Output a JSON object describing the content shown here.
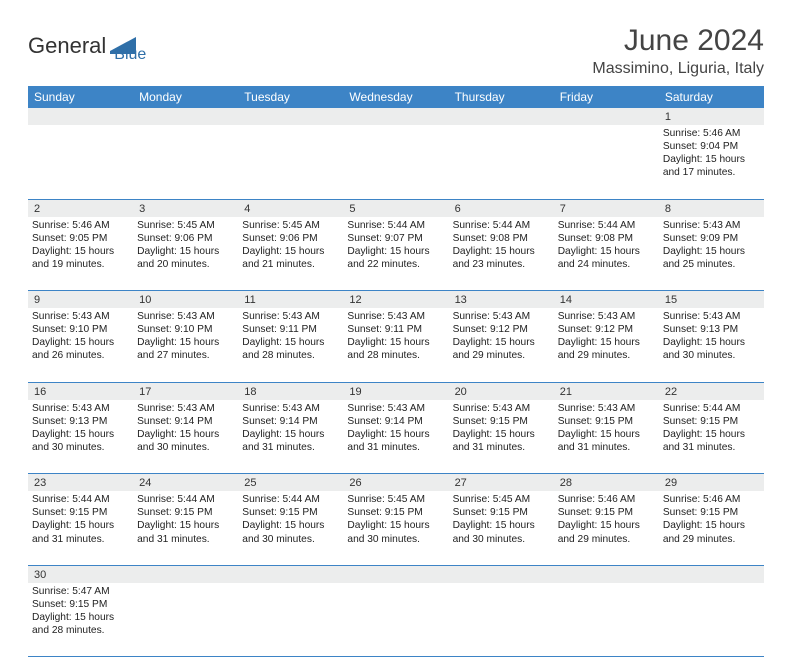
{
  "brand": {
    "part1": "General",
    "part2": "Blue"
  },
  "header": {
    "title": "June 2024",
    "location": "Massimino, Liguria, Italy"
  },
  "colors": {
    "header_bg": "#3d84c6",
    "header_text": "#ffffff",
    "daynum_bg": "#eceded",
    "border": "#3d84c6",
    "brand_blue": "#2f6fa8"
  },
  "weekdays": [
    "Sunday",
    "Monday",
    "Tuesday",
    "Wednesday",
    "Thursday",
    "Friday",
    "Saturday"
  ],
  "weeks": [
    [
      null,
      null,
      null,
      null,
      null,
      null,
      {
        "d": "1",
        "sr": "5:46 AM",
        "ss": "9:04 PM",
        "dl": "15 hours and 17 minutes."
      }
    ],
    [
      {
        "d": "2",
        "sr": "5:46 AM",
        "ss": "9:05 PM",
        "dl": "15 hours and 19 minutes."
      },
      {
        "d": "3",
        "sr": "5:45 AM",
        "ss": "9:06 PM",
        "dl": "15 hours and 20 minutes."
      },
      {
        "d": "4",
        "sr": "5:45 AM",
        "ss": "9:06 PM",
        "dl": "15 hours and 21 minutes."
      },
      {
        "d": "5",
        "sr": "5:44 AM",
        "ss": "9:07 PM",
        "dl": "15 hours and 22 minutes."
      },
      {
        "d": "6",
        "sr": "5:44 AM",
        "ss": "9:08 PM",
        "dl": "15 hours and 23 minutes."
      },
      {
        "d": "7",
        "sr": "5:44 AM",
        "ss": "9:08 PM",
        "dl": "15 hours and 24 minutes."
      },
      {
        "d": "8",
        "sr": "5:43 AM",
        "ss": "9:09 PM",
        "dl": "15 hours and 25 minutes."
      }
    ],
    [
      {
        "d": "9",
        "sr": "5:43 AM",
        "ss": "9:10 PM",
        "dl": "15 hours and 26 minutes."
      },
      {
        "d": "10",
        "sr": "5:43 AM",
        "ss": "9:10 PM",
        "dl": "15 hours and 27 minutes."
      },
      {
        "d": "11",
        "sr": "5:43 AM",
        "ss": "9:11 PM",
        "dl": "15 hours and 28 minutes."
      },
      {
        "d": "12",
        "sr": "5:43 AM",
        "ss": "9:11 PM",
        "dl": "15 hours and 28 minutes."
      },
      {
        "d": "13",
        "sr": "5:43 AM",
        "ss": "9:12 PM",
        "dl": "15 hours and 29 minutes."
      },
      {
        "d": "14",
        "sr": "5:43 AM",
        "ss": "9:12 PM",
        "dl": "15 hours and 29 minutes."
      },
      {
        "d": "15",
        "sr": "5:43 AM",
        "ss": "9:13 PM",
        "dl": "15 hours and 30 minutes."
      }
    ],
    [
      {
        "d": "16",
        "sr": "5:43 AM",
        "ss": "9:13 PM",
        "dl": "15 hours and 30 minutes."
      },
      {
        "d": "17",
        "sr": "5:43 AM",
        "ss": "9:14 PM",
        "dl": "15 hours and 30 minutes."
      },
      {
        "d": "18",
        "sr": "5:43 AM",
        "ss": "9:14 PM",
        "dl": "15 hours and 31 minutes."
      },
      {
        "d": "19",
        "sr": "5:43 AM",
        "ss": "9:14 PM",
        "dl": "15 hours and 31 minutes."
      },
      {
        "d": "20",
        "sr": "5:43 AM",
        "ss": "9:15 PM",
        "dl": "15 hours and 31 minutes."
      },
      {
        "d": "21",
        "sr": "5:43 AM",
        "ss": "9:15 PM",
        "dl": "15 hours and 31 minutes."
      },
      {
        "d": "22",
        "sr": "5:44 AM",
        "ss": "9:15 PM",
        "dl": "15 hours and 31 minutes."
      }
    ],
    [
      {
        "d": "23",
        "sr": "5:44 AM",
        "ss": "9:15 PM",
        "dl": "15 hours and 31 minutes."
      },
      {
        "d": "24",
        "sr": "5:44 AM",
        "ss": "9:15 PM",
        "dl": "15 hours and 31 minutes."
      },
      {
        "d": "25",
        "sr": "5:44 AM",
        "ss": "9:15 PM",
        "dl": "15 hours and 30 minutes."
      },
      {
        "d": "26",
        "sr": "5:45 AM",
        "ss": "9:15 PM",
        "dl": "15 hours and 30 minutes."
      },
      {
        "d": "27",
        "sr": "5:45 AM",
        "ss": "9:15 PM",
        "dl": "15 hours and 30 minutes."
      },
      {
        "d": "28",
        "sr": "5:46 AM",
        "ss": "9:15 PM",
        "dl": "15 hours and 29 minutes."
      },
      {
        "d": "29",
        "sr": "5:46 AM",
        "ss": "9:15 PM",
        "dl": "15 hours and 29 minutes."
      }
    ],
    [
      {
        "d": "30",
        "sr": "5:47 AM",
        "ss": "9:15 PM",
        "dl": "15 hours and 28 minutes."
      },
      null,
      null,
      null,
      null,
      null,
      null
    ]
  ],
  "labels": {
    "sunrise": "Sunrise:",
    "sunset": "Sunset:",
    "daylight": "Daylight:"
  }
}
